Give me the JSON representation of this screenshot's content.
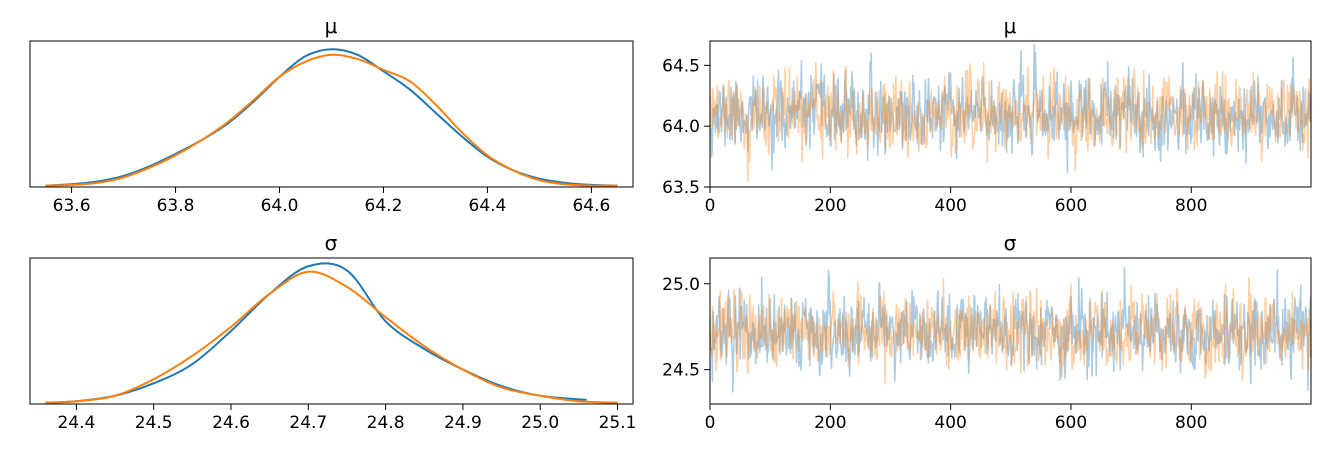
{
  "colors": {
    "chain1": "#1f77b4",
    "chain2": "#ff7f0e",
    "frame": "#000000"
  },
  "chart_data": [
    {
      "id": "mu-kde",
      "type": "line",
      "title": "μ",
      "xlim": [
        63.52,
        64.68
      ],
      "ylim": [
        0,
        1.06
      ],
      "xticks": [
        63.6,
        63.8,
        64.0,
        64.2,
        64.4,
        64.6
      ],
      "xtick_labels": [
        "63.6",
        "63.8",
        "64.0",
        "64.2",
        "64.4",
        "64.6"
      ],
      "yticks": [],
      "series": [
        {
          "x": [
            63.55,
            63.6,
            63.65,
            63.7,
            63.75,
            63.8,
            63.85,
            63.9,
            63.95,
            64.0,
            64.05,
            64.1,
            64.15,
            64.2,
            64.25,
            64.3,
            64.35,
            64.4,
            64.45,
            64.5,
            64.55,
            64.6,
            64.65
          ],
          "y": [
            0.01,
            0.02,
            0.04,
            0.08,
            0.15,
            0.24,
            0.34,
            0.46,
            0.62,
            0.8,
            0.95,
            1.0,
            0.96,
            0.84,
            0.71,
            0.54,
            0.37,
            0.22,
            0.12,
            0.06,
            0.03,
            0.015,
            0.01
          ]
        },
        {
          "x": [
            63.55,
            63.6,
            63.65,
            63.7,
            63.75,
            63.8,
            63.85,
            63.9,
            63.95,
            64.0,
            64.05,
            64.1,
            64.15,
            64.2,
            64.25,
            64.3,
            64.35,
            64.4,
            64.45,
            64.5,
            64.55,
            64.6,
            64.65
          ],
          "y": [
            0.01,
            0.015,
            0.03,
            0.07,
            0.14,
            0.23,
            0.34,
            0.47,
            0.63,
            0.8,
            0.91,
            0.96,
            0.93,
            0.85,
            0.77,
            0.6,
            0.4,
            0.23,
            0.12,
            0.05,
            0.02,
            0.01,
            0.01
          ]
        }
      ]
    },
    {
      "id": "mu-trace",
      "type": "line",
      "title": "μ",
      "xlim": [
        0,
        999
      ],
      "ylim": [
        63.5,
        64.7
      ],
      "xticks": [
        0,
        200,
        400,
        600,
        800
      ],
      "xtick_labels": [
        "0",
        "200",
        "400",
        "600",
        "800"
      ],
      "yticks": [
        63.5,
        64.0,
        64.5
      ],
      "ytick_labels": [
        "63.5",
        "64.0",
        "64.5"
      ],
      "trace": {
        "n_draws": 1000,
        "center": 64.1,
        "sd": 0.15,
        "seeds": [
          11,
          29
        ],
        "opacity": 0.38
      }
    },
    {
      "id": "sigma-kde",
      "type": "line",
      "title": "σ",
      "xlim": [
        24.34,
        25.12
      ],
      "ylim": [
        0,
        1.06
      ],
      "xticks": [
        24.4,
        24.5,
        24.6,
        24.7,
        24.8,
        24.9,
        25.0,
        25.1
      ],
      "xtick_labels": [
        "24.4",
        "24.5",
        "24.6",
        "24.7",
        "24.8",
        "24.9",
        "25.0",
        "25.1"
      ],
      "yticks": [],
      "series": [
        {
          "x": [
            24.36,
            24.4,
            24.45,
            24.5,
            24.55,
            24.6,
            24.65,
            24.7,
            24.75,
            24.8,
            24.85,
            24.9,
            24.95,
            25.0,
            25.06
          ],
          "y": [
            0.01,
            0.02,
            0.06,
            0.15,
            0.29,
            0.53,
            0.8,
            1.0,
            0.97,
            0.6,
            0.4,
            0.25,
            0.13,
            0.06,
            0.03
          ]
        },
        {
          "x": [
            24.36,
            24.4,
            24.45,
            24.5,
            24.55,
            24.6,
            24.65,
            24.7,
            24.75,
            24.8,
            24.85,
            24.9,
            24.95,
            25.0,
            25.05,
            25.1
          ],
          "y": [
            0.01,
            0.02,
            0.06,
            0.18,
            0.35,
            0.56,
            0.8,
            0.96,
            0.85,
            0.63,
            0.42,
            0.25,
            0.12,
            0.06,
            0.02,
            0.01
          ]
        }
      ]
    },
    {
      "id": "sigma-trace",
      "type": "line",
      "title": "σ",
      "xlim": [
        0,
        999
      ],
      "ylim": [
        24.3,
        25.15
      ],
      "xticks": [
        0,
        200,
        400,
        600,
        800
      ],
      "xtick_labels": [
        "0",
        "200",
        "400",
        "600",
        "800"
      ],
      "yticks": [
        24.5,
        25.0
      ],
      "ytick_labels": [
        "24.5",
        "25.0"
      ],
      "trace": {
        "n_draws": 1000,
        "center": 24.72,
        "sd": 0.11,
        "seeds": [
          47,
          83
        ],
        "opacity": 0.38
      }
    }
  ]
}
